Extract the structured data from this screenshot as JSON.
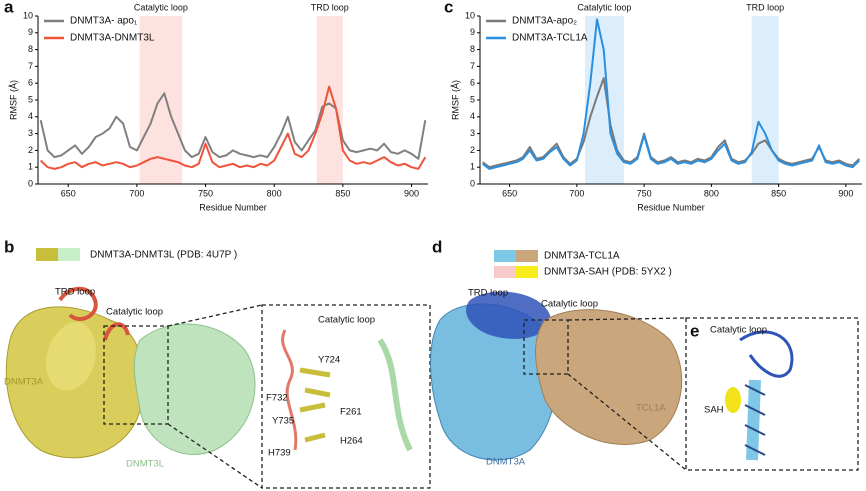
{
  "chart_data": [
    {
      "type": "line",
      "panel": "a",
      "xlabel": "Residue Number",
      "ylabel": "RMSF (Å)",
      "x": [
        630,
        635,
        640,
        645,
        650,
        655,
        660,
        665,
        670,
        675,
        680,
        685,
        690,
        695,
        700,
        705,
        710,
        715,
        720,
        725,
        730,
        735,
        740,
        745,
        750,
        755,
        760,
        765,
        770,
        775,
        780,
        785,
        790,
        795,
        800,
        805,
        810,
        815,
        820,
        825,
        830,
        835,
        840,
        845,
        850,
        855,
        860,
        865,
        870,
        875,
        880,
        885,
        890,
        895,
        900,
        905,
        910
      ],
      "xlim": [
        628,
        912
      ],
      "xticks": [
        650,
        700,
        750,
        800,
        850,
        900
      ],
      "ylim": [
        0,
        10
      ],
      "yticks": [
        0,
        1,
        2,
        3,
        4,
        5,
        6,
        7,
        8,
        9,
        10
      ],
      "bands": [
        {
          "label": "Catalytic loop",
          "range": [
            702,
            733
          ]
        },
        {
          "label": "TRD loop",
          "range": [
            831,
            850
          ]
        }
      ],
      "band_color": "#fde2e0",
      "series": [
        {
          "name": "DNMT3A- apo₁",
          "color": "#808080",
          "values": [
            3.8,
            2.0,
            1.6,
            1.7,
            2.0,
            2.3,
            1.8,
            2.2,
            2.8,
            3.0,
            3.3,
            4.0,
            3.6,
            2.2,
            2.0,
            2.8,
            3.6,
            4.8,
            5.4,
            4.0,
            3.0,
            2.0,
            1.6,
            1.8,
            2.8,
            1.9,
            1.6,
            1.7,
            2.0,
            1.8,
            1.7,
            1.6,
            1.7,
            1.6,
            2.2,
            3.0,
            4.0,
            2.5,
            2.0,
            2.6,
            3.2,
            4.6,
            4.8,
            4.5,
            2.6,
            2.0,
            1.9,
            2.0,
            2.1,
            2.0,
            2.4,
            1.9,
            1.8,
            2.0,
            1.8,
            1.5,
            3.8
          ]
        },
        {
          "name": "DNMT3A-DNMT3L",
          "color": "#f0533a",
          "values": [
            1.4,
            1.0,
            0.9,
            1.0,
            1.2,
            1.3,
            1.0,
            1.2,
            1.3,
            1.1,
            1.2,
            1.3,
            1.2,
            1.0,
            1.1,
            1.3,
            1.5,
            1.6,
            1.5,
            1.4,
            1.3,
            1.1,
            1.0,
            1.2,
            2.4,
            1.3,
            1.0,
            1.1,
            1.2,
            1.0,
            1.1,
            1.0,
            1.2,
            1.1,
            1.4,
            2.2,
            3.0,
            1.8,
            1.6,
            2.0,
            3.0,
            4.2,
            5.8,
            4.5,
            2.0,
            1.4,
            1.2,
            1.3,
            1.2,
            1.4,
            1.6,
            1.3,
            1.1,
            1.2,
            1.0,
            0.9,
            1.6
          ]
        }
      ]
    },
    {
      "type": "line",
      "panel": "c",
      "xlabel": "Residue Number",
      "ylabel": "RMSF (Å)",
      "x": [
        630,
        635,
        640,
        645,
        650,
        655,
        660,
        665,
        670,
        675,
        680,
        685,
        690,
        695,
        700,
        705,
        710,
        715,
        720,
        725,
        730,
        735,
        740,
        745,
        750,
        755,
        760,
        765,
        770,
        775,
        780,
        785,
        790,
        795,
        800,
        805,
        810,
        815,
        820,
        825,
        830,
        835,
        840,
        845,
        850,
        855,
        860,
        865,
        870,
        875,
        880,
        885,
        890,
        895,
        900,
        905,
        910
      ],
      "xlim": [
        628,
        912
      ],
      "xticks": [
        650,
        700,
        750,
        800,
        850,
        900
      ],
      "ylim": [
        0,
        10
      ],
      "yticks": [
        0,
        1,
        2,
        3,
        4,
        5,
        6,
        7,
        8,
        9,
        10
      ],
      "bands": [
        {
          "label": "Catalytic loop",
          "range": [
            706,
            735
          ]
        },
        {
          "label": "TRD loop",
          "range": [
            830,
            850
          ]
        }
      ],
      "band_color": "#dcedfb",
      "series": [
        {
          "name": "DNMT3A-apo₂",
          "color": "#7a7a7a",
          "values": [
            1.3,
            1.0,
            1.1,
            1.2,
            1.3,
            1.4,
            1.6,
            2.2,
            1.5,
            1.6,
            2.0,
            2.4,
            1.6,
            1.2,
            1.5,
            2.5,
            4.0,
            5.2,
            6.3,
            3.5,
            2.0,
            1.4,
            1.3,
            1.6,
            3.0,
            1.6,
            1.3,
            1.4,
            1.6,
            1.3,
            1.4,
            1.3,
            1.5,
            1.4,
            1.6,
            2.2,
            2.6,
            1.5,
            1.3,
            1.4,
            1.8,
            2.4,
            2.6,
            2.0,
            1.5,
            1.3,
            1.2,
            1.3,
            1.4,
            1.5,
            2.2,
            1.4,
            1.3,
            1.4,
            1.2,
            1.1,
            1.5
          ]
        },
        {
          "name": "DNMT3A-TCL1A",
          "color": "#2a8fe0",
          "values": [
            1.2,
            0.9,
            1.0,
            1.1,
            1.2,
            1.3,
            1.5,
            2.0,
            1.4,
            1.5,
            1.9,
            2.2,
            1.5,
            1.1,
            1.4,
            3.0,
            6.0,
            9.8,
            8.0,
            3.0,
            1.8,
            1.3,
            1.2,
            1.5,
            2.9,
            1.5,
            1.2,
            1.3,
            1.5,
            1.2,
            1.3,
            1.2,
            1.4,
            1.3,
            1.5,
            2.0,
            2.4,
            1.4,
            1.2,
            1.3,
            1.9,
            3.7,
            3.0,
            2.0,
            1.4,
            1.2,
            1.1,
            1.2,
            1.3,
            1.4,
            2.3,
            1.3,
            1.2,
            1.3,
            1.1,
            1.0,
            1.4
          ]
        }
      ]
    }
  ],
  "panel_b": {
    "letter": "b",
    "legend": "DNMT3A-DNMT3L (PDB: 4U7P )",
    "labels": [
      "TRD loop",
      "Catalytic loop",
      "DNMT3A",
      "DNMT3L",
      "Catalytic loop",
      "Y724",
      "F732",
      "F261",
      "Y735",
      "H264",
      "H739"
    ]
  },
  "panel_d": {
    "letter": "d",
    "legend": [
      "DNMT3A-TCL1A",
      "DNMT3A-SAH (PDB: 5YX2 )"
    ],
    "inset_letter": "e",
    "labels": [
      "TRD loop",
      "Catalytic loop",
      "TCL1A",
      "DNMT3A",
      "Catalytic loop",
      "SAH"
    ]
  }
}
